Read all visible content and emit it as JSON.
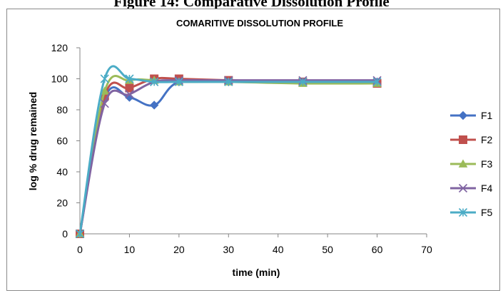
{
  "caption": "Figure 14: Comparative Dissolution Profile",
  "chart_data": {
    "type": "line",
    "title": "COMARITIVE DISSOLUTION PROFILE",
    "xlabel": "time (min)",
    "ylabel": "log % drug remained",
    "xlim": [
      0,
      70
    ],
    "ylim": [
      0,
      120
    ],
    "xticks": [
      0,
      10,
      20,
      30,
      40,
      50,
      60,
      70
    ],
    "yticks": [
      0,
      20,
      40,
      60,
      80,
      100,
      120
    ],
    "grid": false,
    "legend_position": "right",
    "x": [
      0,
      5,
      10,
      15,
      20,
      30,
      45,
      60
    ],
    "series": [
      {
        "name": "F1",
        "color": "#4472c4",
        "marker": "diamond",
        "values": [
          0,
          87,
          88,
          83,
          98,
          98,
          98,
          98
        ]
      },
      {
        "name": "F2",
        "color": "#c0504d",
        "marker": "square",
        "values": [
          0,
          89,
          94,
          100,
          100,
          99,
          98,
          97
        ]
      },
      {
        "name": "F3",
        "color": "#9bbb59",
        "marker": "triangle",
        "values": [
          0,
          92,
          99,
          99,
          98,
          98,
          97,
          97
        ]
      },
      {
        "name": "F4",
        "color": "#8064a2",
        "marker": "x",
        "values": [
          0,
          84,
          90,
          98,
          99,
          99,
          99,
          99
        ]
      },
      {
        "name": "F5",
        "color": "#4bacc6",
        "marker": "asterisk",
        "values": [
          0,
          100,
          100,
          98,
          98,
          98,
          98,
          98
        ]
      }
    ]
  }
}
